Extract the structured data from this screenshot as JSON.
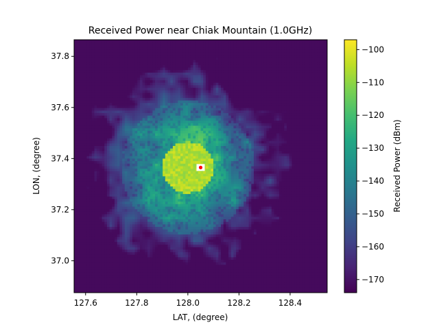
{
  "chart_data": {
    "type": "heatmap",
    "title": "Received Power near Chiak Mountain (1.0GHz)",
    "xlabel": "LAT, (degree)",
    "ylabel": "LON, (degree)",
    "colorbar_label": "Received Power (dBm)",
    "colormap": "viridis",
    "xlim": [
      127.555,
      128.545
    ],
    "ylim": [
      36.875,
      37.865
    ],
    "clim": [
      -174,
      -97
    ],
    "x_ticks": [
      127.6,
      127.8,
      128.0,
      128.2,
      128.4
    ],
    "x_tick_labels": [
      "127.6",
      "127.8",
      "128.0",
      "128.2",
      "128.4"
    ],
    "y_ticks": [
      37.0,
      37.2,
      37.4,
      37.6,
      37.8
    ],
    "y_tick_labels": [
      "37.0",
      "37.2",
      "37.4",
      "37.6",
      "37.8"
    ],
    "colorbar_ticks": [
      -170,
      -160,
      -150,
      -140,
      -130,
      -120,
      -110,
      -100
    ],
    "colorbar_tick_labels": [
      "−170",
      "−160",
      "−150",
      "−140",
      "−130",
      "−120",
      "−110",
      "−100"
    ],
    "grid": {
      "nx": 100,
      "ny": 100
    },
    "transmitter": {
      "lat": 128.05,
      "lon": 37.365,
      "color": "#ff0000"
    },
    "peak_dbm": -98,
    "floor_dbm": -172
  }
}
